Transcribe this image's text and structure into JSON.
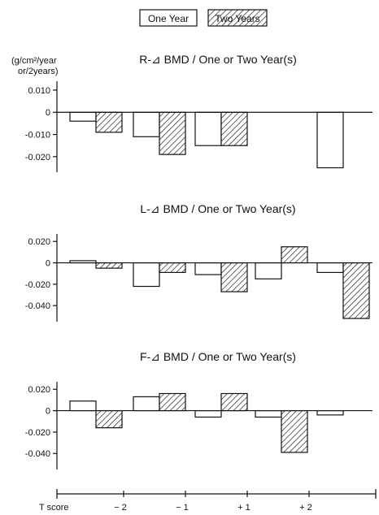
{
  "chart_data": [
    {
      "type": "bar",
      "title": "R-⊿ BMD / One or Two Year(s)",
      "ylabel_lines": [
        "(g/cm²/year",
        "or/2years)"
      ],
      "ylim": [
        -0.027,
        0.014
      ],
      "yticks": [
        0.01,
        0,
        -0.01,
        -0.02
      ],
      "ytick_labels": [
        "0.010",
        "0",
        "-0.010",
        "-0.020"
      ],
      "series": [
        {
          "name": "One Year",
          "values": [
            -0.004,
            -0.011,
            -0.015,
            null,
            -0.025
          ]
        },
        {
          "name": "Two Years",
          "values": [
            -0.009,
            -0.019,
            -0.015,
            null,
            null
          ]
        }
      ]
    },
    {
      "type": "bar",
      "title": "L-⊿ BMD / One or Two Year(s)",
      "ylim": [
        -0.055,
        0.027
      ],
      "yticks": [
        0.02,
        0,
        -0.02,
        -0.04
      ],
      "ytick_labels": [
        "0.020",
        "0",
        "-0.020",
        "-0.040"
      ],
      "series": [
        {
          "name": "One Year",
          "values": [
            0.002,
            -0.022,
            -0.011,
            -0.015,
            -0.009
          ]
        },
        {
          "name": "Two Years",
          "values": [
            -0.005,
            -0.009,
            -0.027,
            0.015,
            -0.052
          ]
        }
      ]
    },
    {
      "type": "bar",
      "title": "F-⊿ BMD / One or Two Year(s)",
      "ylim": [
        -0.055,
        0.027
      ],
      "yticks": [
        0.02,
        0,
        -0.02,
        -0.04
      ],
      "ytick_labels": [
        "0.020",
        "0",
        "-0.020",
        "-0.040"
      ],
      "series": [
        {
          "name": "One Year",
          "values": [
            0.009,
            0.013,
            -0.006,
            -0.006,
            -0.004
          ]
        },
        {
          "name": "Two Years",
          "values": [
            -0.016,
            0.016,
            0.016,
            -0.039,
            null
          ]
        }
      ]
    }
  ],
  "legend": {
    "one_year": "One Year",
    "two_years": "Two Years"
  },
  "x_axis": {
    "label": "T score",
    "tick_labels": [
      "− 2",
      "− 1",
      "+ 1",
      "+ 2"
    ]
  }
}
